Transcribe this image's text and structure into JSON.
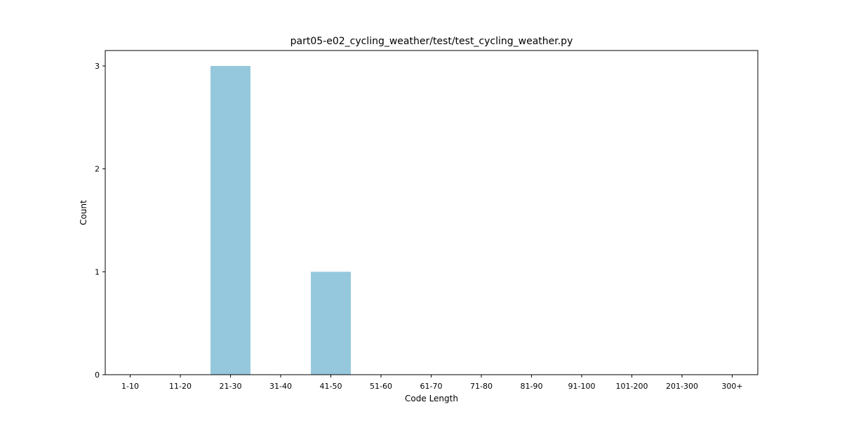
{
  "chart_data": {
    "type": "bar",
    "title": "part05-e02_cycling_weather/test/test_cycling_weather.py",
    "xlabel": "Code Length",
    "ylabel": "Count",
    "categories": [
      "1-10",
      "11-20",
      "21-30",
      "31-40",
      "41-50",
      "51-60",
      "61-70",
      "71-80",
      "81-90",
      "91-100",
      "101-200",
      "201-300",
      "300+"
    ],
    "values": [
      0,
      0,
      3,
      0,
      1,
      0,
      0,
      0,
      0,
      0,
      0,
      0,
      0
    ],
    "yticks": [
      0,
      1,
      2,
      3
    ],
    "ylim": [
      0,
      3.15
    ],
    "grid": false,
    "bar_color": "#95c8dc"
  }
}
